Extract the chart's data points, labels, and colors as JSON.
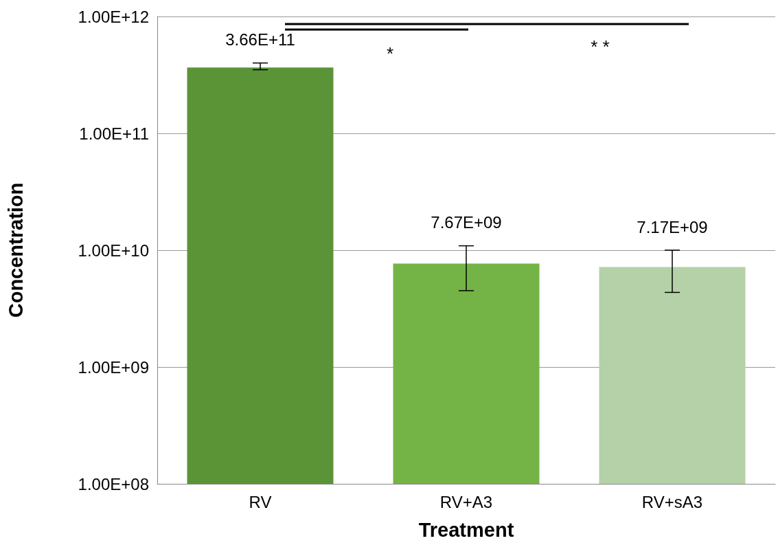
{
  "chart_data": {
    "type": "bar",
    "xlabel": "Treatment",
    "ylabel": "Concentration",
    "categories": [
      "RV",
      "RV+A3",
      "RV+sA3"
    ],
    "values": [
      366000000000.0,
      7670000000.0,
      7170000000.0
    ],
    "colors": [
      "#5a9437",
      "#74b345",
      "#b5d1a7"
    ],
    "value_labels": [
      "3.66E+11",
      "7.67E+09",
      "7.17E+09"
    ],
    "errors": [
      [
        350000000000.0,
        400000000000.0
      ],
      [
        4500000000.0,
        10900000000.0
      ],
      [
        4350000000.0,
        10000000000.0
      ]
    ],
    "log": "y",
    "ylim": [
      100000000.0,
      1000000000000.0
    ],
    "yticks": [
      {
        "value": 100000000.0,
        "label": "1.00E+08"
      },
      {
        "value": 1000000000.0,
        "label": "1.00E+09"
      },
      {
        "value": 10000000000.0,
        "label": "1.00E+10"
      },
      {
        "value": 100000000000.0,
        "label": "1.00E+11"
      },
      {
        "value": 1000000000000.0,
        "label": "1.00E+12"
      }
    ],
    "grid": "y",
    "annotations": [
      "*",
      "* *"
    ]
  }
}
